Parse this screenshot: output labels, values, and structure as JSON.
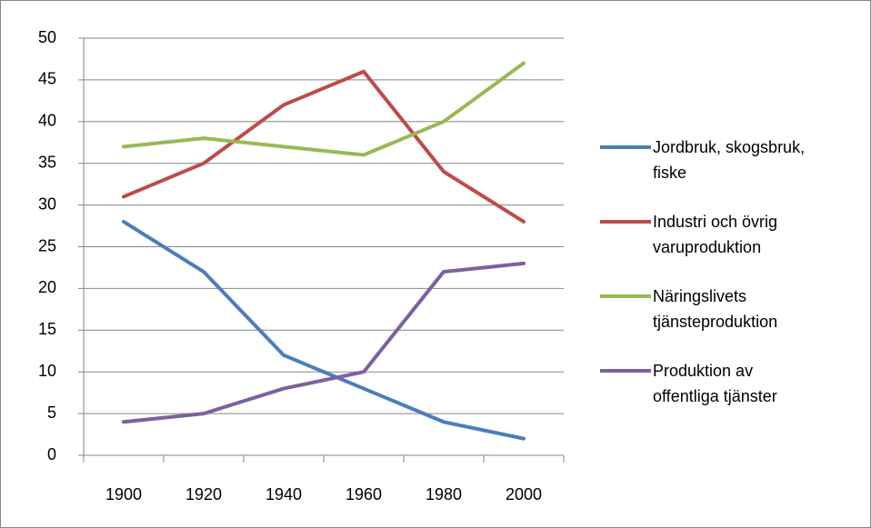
{
  "chart_data": {
    "type": "line",
    "categories": [
      "1900",
      "1920",
      "1940",
      "1960",
      "1980",
      "2000"
    ],
    "series": [
      {
        "name": "Jordbruk, skogsbruk, fiske",
        "color": "#4a7ebb",
        "values": [
          28,
          22,
          12,
          8,
          4,
          2
        ]
      },
      {
        "name": "Industri och övrig varuproduktion",
        "color": "#be4b48",
        "values": [
          31,
          35,
          42,
          46,
          34,
          28
        ]
      },
      {
        "name": "Näringslivets tjänsteproduktion",
        "color": "#98b954",
        "values": [
          37,
          38,
          37,
          36,
          40,
          47
        ]
      },
      {
        "name": "Produktion av offentliga tjänster",
        "color": "#7d60a0",
        "values": [
          4,
          5,
          8,
          10,
          22,
          23
        ]
      }
    ],
    "ylim": [
      0,
      50
    ],
    "yticks": [
      0,
      5,
      10,
      15,
      20,
      25,
      30,
      35,
      40,
      45,
      50
    ],
    "grid": true,
    "legend": "right"
  }
}
